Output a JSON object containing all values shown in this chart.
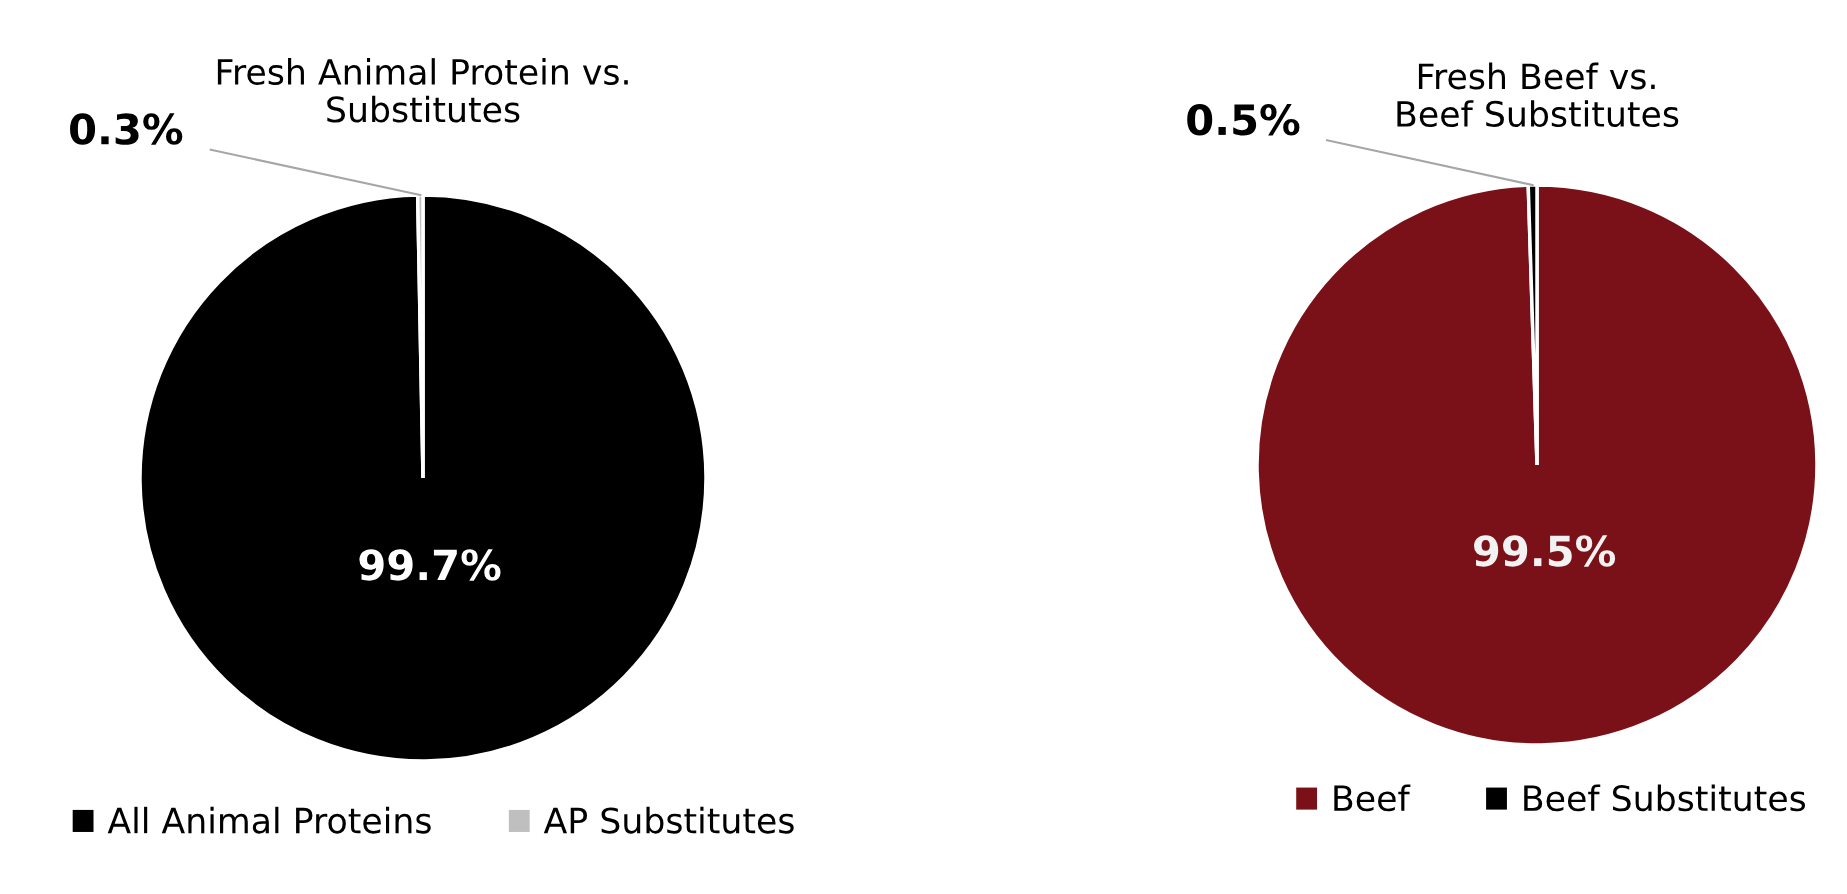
{
  "chart_data": [
    {
      "type": "pie",
      "title": "Fresh Animal Protein vs.\nSubstitutes",
      "categories": [
        "All Animal Proteins",
        "AP Substitutes"
      ],
      "values": [
        99.7,
        0.3
      ],
      "colors": [
        "#000000",
        "#bfbfbf"
      ],
      "value_labels": [
        "99.7%",
        "0.3%"
      ],
      "legend": "bottom"
    },
    {
      "type": "pie",
      "title": "Fresh Beef vs.\nBeef Substitutes",
      "categories": [
        "Beef",
        "Beef Substitutes"
      ],
      "values": [
        99.5,
        0.5
      ],
      "colors": [
        "#7a1118",
        "#000000"
      ],
      "value_labels": [
        "99.5%",
        "0.5%"
      ],
      "legend": "bottom"
    }
  ]
}
